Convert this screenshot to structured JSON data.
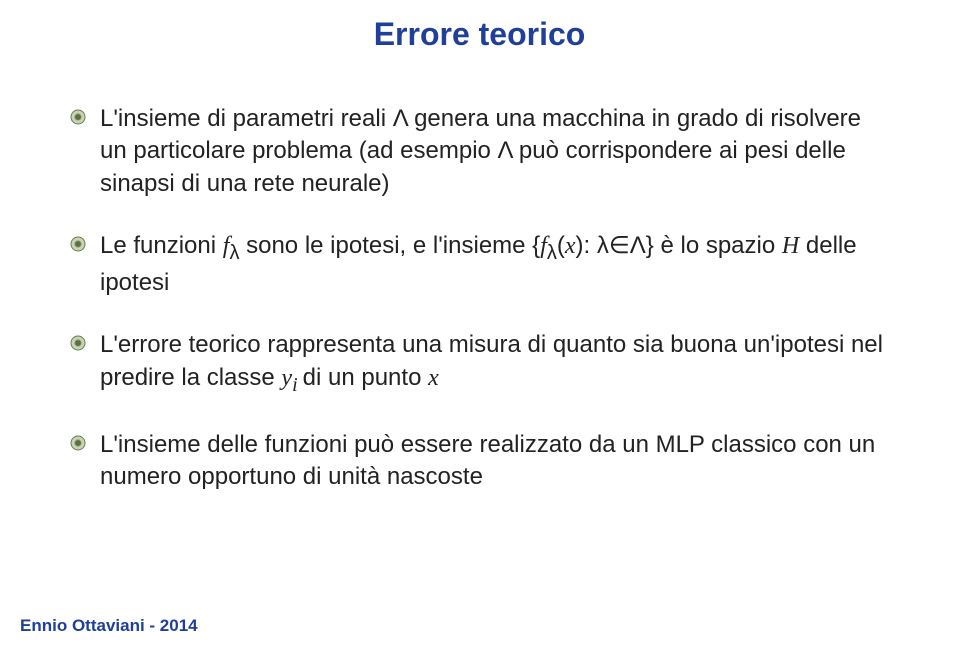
{
  "title": {
    "text": "Errore teorico",
    "color": "#1f3f9a",
    "fontsize": 32
  },
  "body": {
    "fontsize": 24,
    "color": "#222222",
    "bullets": [
      {
        "html": "L'insieme di parametri reali Λ genera una macchina in grado di risolvere un particolare problema (ad esempio Λ può corrispondere ai pesi delle sinapsi di una rete neurale)"
      },
      {
        "html": "Le funzioni <span class='ital'>f</span><sub>λ</sub> sono le ipotesi, e l'insieme {<span class='ital'>f</span><sub>λ</sub>(<span class='ital'>x</span>): λ∈Λ} è lo spazio <span class='ital'>H</span>  delle ipotesi"
      },
      {
        "html": "L'errore teorico rappresenta una misura di quanto sia buona un'ipotesi nel predire la classe <span class='ital'>y<sub>i </sub></span>di un punto <span class='ital'>x</span>"
      },
      {
        "html": "L'insieme delle funzioni può essere realizzato da un MLP classico con un numero opportuno di unità nascoste"
      }
    ]
  },
  "bullet_style": {
    "size": 16,
    "outer_fill": "#c8d4b4",
    "outer_stroke": "#6b7a52",
    "inner_fill": "#5f6e4a",
    "inner_stroke": "#8a9a6e"
  },
  "footer": {
    "text": "Ennio Ottaviani - 2014",
    "color": "#1f3f9a",
    "fontsize": 17
  }
}
